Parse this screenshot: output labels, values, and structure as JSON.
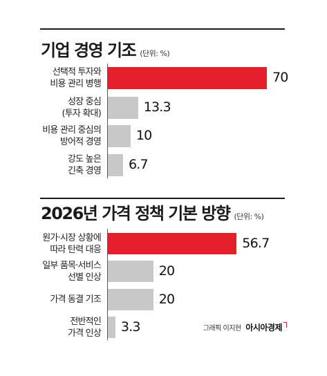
{
  "chart_data": [
    {
      "type": "bar",
      "orientation": "horizontal",
      "title": "기업 경영 기조",
      "unit_note": "(단위: %)",
      "categories": [
        [
          "선택적 투자와",
          "비용 관리 병행"
        ],
        [
          "성장 중심",
          "(투자 확대)"
        ],
        [
          "비용 관리 중심의",
          "방어적 경영"
        ],
        [
          "강도 높은",
          "긴축 경영"
        ]
      ],
      "values": [
        70,
        13.3,
        10,
        6.7
      ],
      "value_labels": [
        "70",
        "13.3",
        "10",
        "6.7"
      ],
      "highlight_index": 0,
      "xlim": [
        0,
        70
      ]
    },
    {
      "type": "bar",
      "orientation": "horizontal",
      "title": "2026년 가격 정책 기본 방향",
      "unit_note": "(단위: %)",
      "categories": [
        [
          "원가·시장 상황에",
          "따라 탄력 대응"
        ],
        [
          "일부 품목·서비스",
          "선별 인상"
        ],
        [
          "가격 동결 기조"
        ],
        [
          "전반적인",
          "가격 인상"
        ]
      ],
      "values": [
        56.7,
        20,
        20,
        3.3
      ],
      "value_labels": [
        "56.7",
        "20",
        "20",
        "3.3"
      ],
      "highlight_index": 0,
      "xlim": [
        0,
        70
      ]
    }
  ],
  "colors": {
    "highlight": "#e4212b",
    "bar": "#c8c8c8",
    "text": "#1a1a1a"
  },
  "credit": {
    "text": "그래픽 이지현",
    "brand": "아시아경제"
  }
}
